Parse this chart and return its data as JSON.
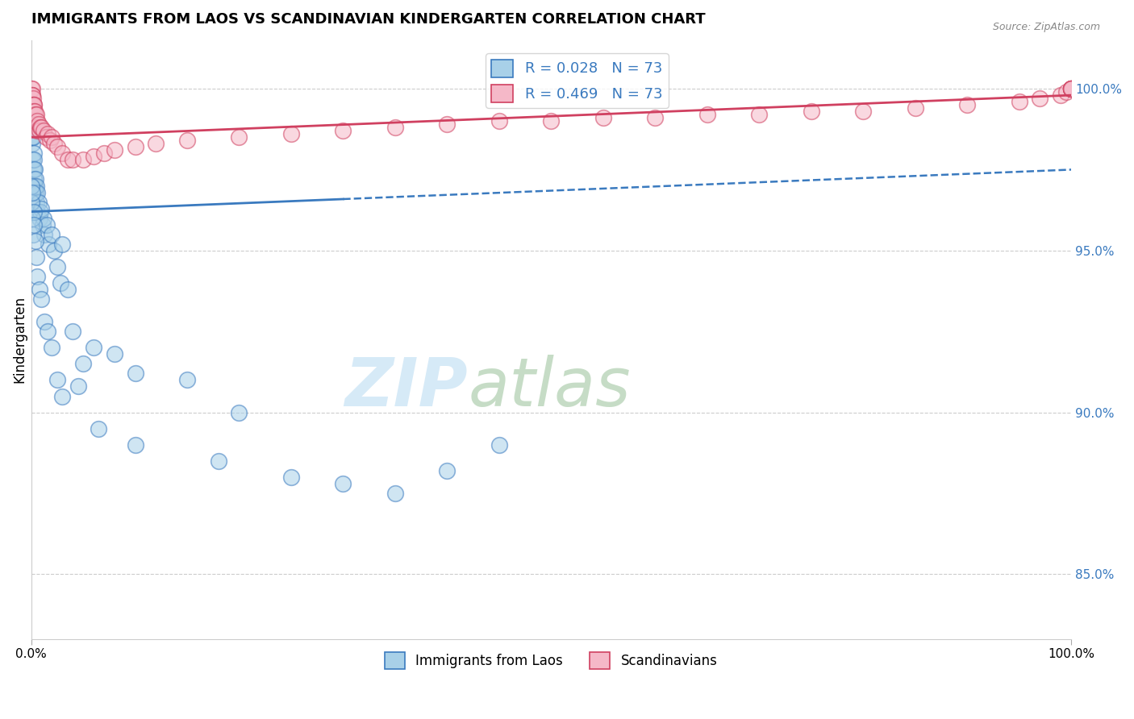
{
  "title": "IMMIGRANTS FROM LAOS VS SCANDINAVIAN KINDERGARTEN CORRELATION CHART",
  "source": "Source: ZipAtlas.com",
  "ylabel": "Kindergarten",
  "xlim": [
    0,
    100
  ],
  "ylim": [
    83,
    101.5
  ],
  "yticks_right": [
    85.0,
    90.0,
    95.0,
    100.0
  ],
  "legend_blue_r": "R = 0.028",
  "legend_blue_n": "N = 73",
  "legend_pink_r": "R = 0.469",
  "legend_pink_n": "N = 73",
  "blue_color": "#a8d0e8",
  "pink_color": "#f5b8c8",
  "trend_blue_color": "#3a7abf",
  "trend_pink_color": "#d04060",
  "blue_trend_solid_end": 30,
  "blue_trend_dash_start": 30,
  "blue_trend_y_at_0": 96.2,
  "blue_trend_y_at_100": 97.5,
  "pink_trend_y_at_0": 98.5,
  "pink_trend_y_at_100": 99.8,
  "blue_scatter_x": [
    0.05,
    0.05,
    0.05,
    0.1,
    0.1,
    0.1,
    0.1,
    0.15,
    0.15,
    0.2,
    0.2,
    0.2,
    0.25,
    0.25,
    0.3,
    0.3,
    0.3,
    0.35,
    0.35,
    0.4,
    0.4,
    0.5,
    0.5,
    0.6,
    0.6,
    0.7,
    0.8,
    0.9,
    1.0,
    1.1,
    1.2,
    1.3,
    1.5,
    1.7,
    2.0,
    2.2,
    2.5,
    2.8,
    3.0,
    3.5,
    4.0,
    5.0,
    6.0,
    8.0,
    10.0,
    15.0,
    20.0,
    0.05,
    0.05,
    0.1,
    0.15,
    0.2,
    0.25,
    0.3,
    0.4,
    0.5,
    0.6,
    0.8,
    1.0,
    1.3,
    1.6,
    2.0,
    2.5,
    3.0,
    4.5,
    6.5,
    10.0,
    18.0,
    25.0,
    30.0,
    35.0,
    40.0,
    45.0
  ],
  "blue_scatter_y": [
    99.5,
    99.0,
    98.5,
    99.2,
    98.8,
    98.3,
    97.8,
    99.0,
    98.5,
    98.5,
    97.5,
    97.0,
    98.0,
    97.5,
    97.8,
    97.2,
    96.8,
    97.5,
    97.0,
    97.2,
    96.8,
    97.0,
    96.5,
    96.8,
    96.2,
    96.5,
    96.0,
    96.2,
    96.3,
    95.8,
    96.0,
    95.5,
    95.8,
    95.2,
    95.5,
    95.0,
    94.5,
    94.0,
    95.2,
    93.8,
    92.5,
    91.5,
    92.0,
    91.8,
    91.2,
    91.0,
    90.0,
    97.0,
    96.5,
    96.8,
    96.0,
    95.5,
    96.2,
    95.8,
    95.3,
    94.8,
    94.2,
    93.8,
    93.5,
    92.8,
    92.5,
    92.0,
    91.0,
    90.5,
    90.8,
    89.5,
    89.0,
    88.5,
    88.0,
    87.8,
    87.5,
    88.2,
    89.0
  ],
  "pink_scatter_x": [
    0.05,
    0.05,
    0.05,
    0.05,
    0.1,
    0.1,
    0.1,
    0.1,
    0.15,
    0.15,
    0.15,
    0.2,
    0.2,
    0.2,
    0.25,
    0.25,
    0.3,
    0.3,
    0.3,
    0.35,
    0.4,
    0.4,
    0.5,
    0.5,
    0.6,
    0.6,
    0.7,
    0.8,
    0.9,
    1.0,
    1.2,
    1.4,
    1.6,
    1.8,
    2.0,
    2.2,
    2.5,
    3.0,
    3.5,
    4.0,
    5.0,
    6.0,
    7.0,
    8.0,
    10.0,
    12.0,
    15.0,
    20.0,
    25.0,
    30.0,
    35.0,
    40.0,
    45.0,
    50.0,
    55.0,
    60.0,
    65.0,
    70.0,
    75.0,
    80.0,
    85.0,
    90.0,
    95.0,
    97.0,
    99.0,
    99.5,
    100.0,
    100.0,
    100.0,
    100.0,
    100.0,
    100.0,
    100.0
  ],
  "pink_scatter_y": [
    100.0,
    99.8,
    99.5,
    99.2,
    100.0,
    99.8,
    99.5,
    99.2,
    99.8,
    99.5,
    99.2,
    99.7,
    99.5,
    99.2,
    99.5,
    99.2,
    99.5,
    99.3,
    99.0,
    99.3,
    99.2,
    98.9,
    99.2,
    98.8,
    99.0,
    98.7,
    98.9,
    98.7,
    98.8,
    98.8,
    98.7,
    98.5,
    98.6,
    98.4,
    98.5,
    98.3,
    98.2,
    98.0,
    97.8,
    97.8,
    97.8,
    97.9,
    98.0,
    98.1,
    98.2,
    98.3,
    98.4,
    98.5,
    98.6,
    98.7,
    98.8,
    98.9,
    99.0,
    99.0,
    99.1,
    99.1,
    99.2,
    99.2,
    99.3,
    99.3,
    99.4,
    99.5,
    99.6,
    99.7,
    99.8,
    99.9,
    100.0,
    100.0,
    100.0,
    100.0,
    100.0,
    100.0,
    100.0
  ]
}
